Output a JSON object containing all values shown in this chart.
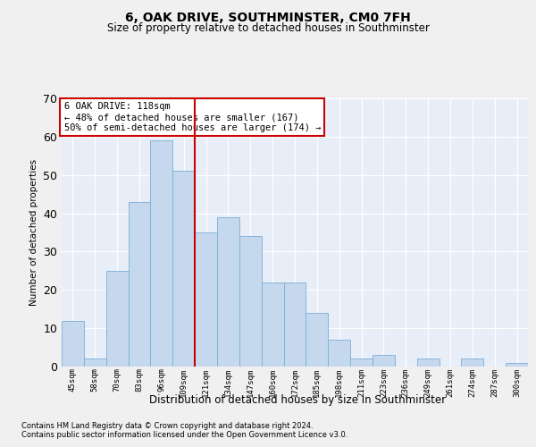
{
  "title": "6, OAK DRIVE, SOUTHMINSTER, CM0 7FH",
  "subtitle": "Size of property relative to detached houses in Southminster",
  "xlabel": "Distribution of detached houses by size in Southminster",
  "ylabel": "Number of detached properties",
  "footnote1": "Contains HM Land Registry data © Crown copyright and database right 2024.",
  "footnote2": "Contains public sector information licensed under the Open Government Licence v3.0.",
  "categories": [
    "45sqm",
    "58sqm",
    "70sqm",
    "83sqm",
    "96sqm",
    "109sqm",
    "121sqm",
    "134sqm",
    "147sqm",
    "160sqm",
    "172sqm",
    "185sqm",
    "198sqm",
    "211sqm",
    "223sqm",
    "236sqm",
    "249sqm",
    "261sqm",
    "274sqm",
    "287sqm",
    "300sqm"
  ],
  "values": [
    12,
    2,
    25,
    43,
    59,
    51,
    35,
    39,
    34,
    22,
    22,
    14,
    7,
    2,
    3,
    0,
    2,
    0,
    2,
    0,
    1
  ],
  "bar_color": "#c5d8ee",
  "bar_edge_color": "#7aaed6",
  "red_line_x": 5.5,
  "annotation_line1": "6 OAK DRIVE: 118sqm",
  "annotation_line2": "← 48% of detached houses are smaller (167)",
  "annotation_line3": "50% of semi-detached houses are larger (174) →",
  "annotation_box_facecolor": "#ffffff",
  "annotation_box_edgecolor": "#cc0000",
  "ylim": [
    0,
    70
  ],
  "yticks": [
    0,
    10,
    20,
    30,
    40,
    50,
    60,
    70
  ],
  "plot_bg": "#e8eef8",
  "grid_color": "#ffffff",
  "red_line_color": "#cc0000",
  "title_fontsize": 10,
  "subtitle_fontsize": 8.5,
  "tick_fontsize": 6.5,
  "ylabel_fontsize": 7.5,
  "xlabel_fontsize": 8.5,
  "footnote_fontsize": 6.0,
  "annot_fontsize": 7.5
}
